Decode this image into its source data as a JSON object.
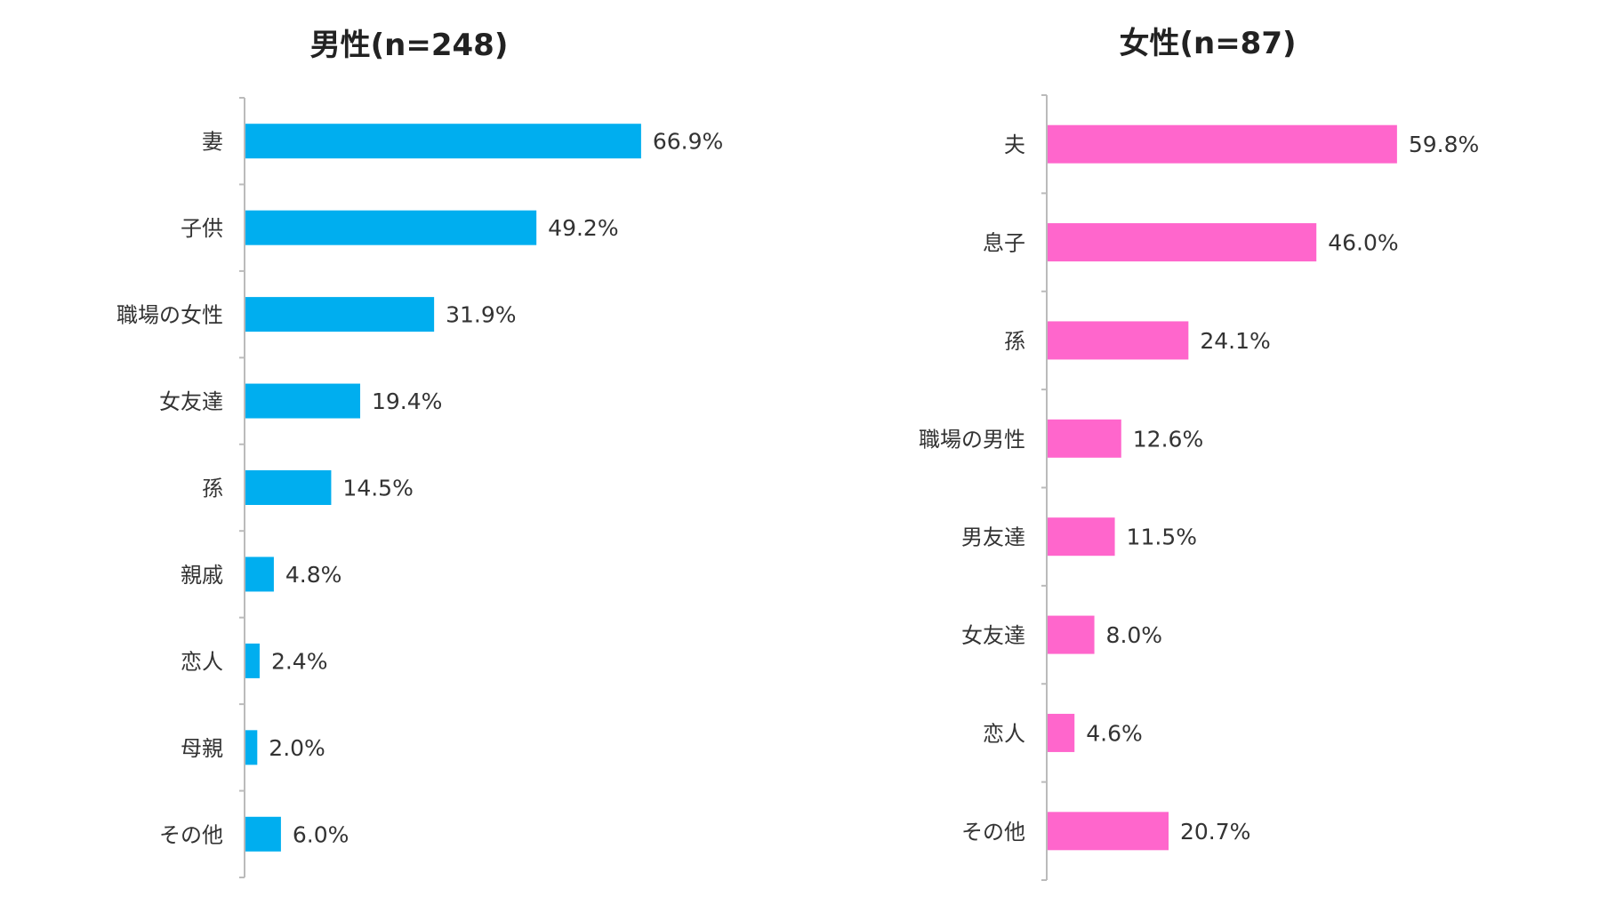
{
  "chart_data": [
    {
      "type": "bar",
      "orientation": "horizontal",
      "title": "男性(n=248)",
      "categories": [
        "妻",
        "子供",
        "職場の女性",
        "女友達",
        "孫",
        "親戚",
        "恋人",
        "母親",
        "その他"
      ],
      "values": [
        66.9,
        49.2,
        31.9,
        19.4,
        14.5,
        4.8,
        2.4,
        2.0,
        6.0
      ],
      "value_labels": [
        "66.9%",
        "49.2%",
        "31.9%",
        "19.4%",
        "14.5%",
        "4.8%",
        "2.4%",
        "2.0%",
        "6.0%"
      ],
      "unit": "%",
      "color": "#00AEEF",
      "grid": false
    },
    {
      "type": "bar",
      "orientation": "horizontal",
      "title": "女性(n=87)",
      "categories": [
        "夫",
        "息子",
        "孫",
        "職場の男性",
        "男友達",
        "女友達",
        "恋人",
        "その他"
      ],
      "values": [
        59.8,
        46.0,
        24.1,
        12.6,
        11.5,
        8.0,
        4.6,
        20.7
      ],
      "value_labels": [
        "59.8%",
        "46.0%",
        "24.1%",
        "12.6%",
        "11.5%",
        "8.0%",
        "4.6%",
        "20.7%"
      ],
      "unit": "%",
      "color": "#FF66CC",
      "grid": false
    }
  ]
}
